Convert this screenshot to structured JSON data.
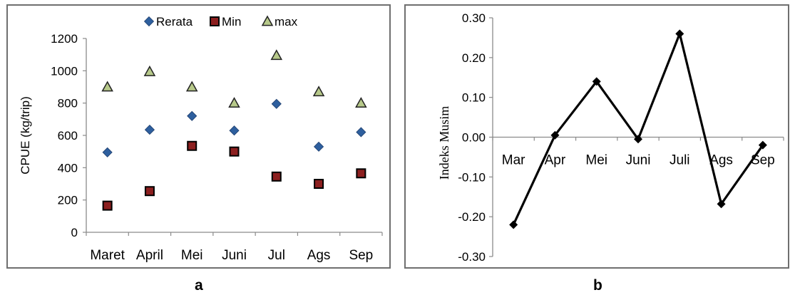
{
  "chart_data": [
    {
      "type": "scatter",
      "panel_label": "a",
      "ylabel": "CPUE (kg/trip)",
      "categories": [
        "Maret",
        "April",
        "Mei",
        "Juni",
        "Jul",
        "Ags",
        "Sep"
      ],
      "ylim": [
        0,
        1200
      ],
      "yticks": [
        "0",
        "200",
        "400",
        "600",
        "800",
        "1000",
        "1200"
      ],
      "legend_position": "top",
      "series": [
        {
          "name": "Rerata",
          "marker": "diamond",
          "color": "#2e5f9e",
          "values": [
            495,
            635,
            720,
            630,
            795,
            530,
            620
          ]
        },
        {
          "name": "Min",
          "marker": "square",
          "color": "#8c1f1f",
          "values": [
            165,
            255,
            535,
            500,
            345,
            300,
            365
          ]
        },
        {
          "name": "max",
          "marker": "triangle",
          "color": "#b7c98a",
          "values": [
            900,
            995,
            900,
            800,
            1095,
            870,
            800
          ]
        }
      ]
    },
    {
      "type": "line",
      "panel_label": "b",
      "ylabel": "Indeks Musim",
      "categories": [
        "Mar",
        "Apr",
        "Mei",
        "Juni",
        "Juli",
        "Ags",
        "Sep"
      ],
      "ylim": [
        -0.3,
        0.3
      ],
      "yticks": [
        "0.30",
        "0.20",
        "0.10",
        "0.00",
        "-0.10",
        "-0.20",
        "-0.30"
      ],
      "series": [
        {
          "values": [
            -0.22,
            0.005,
            0.14,
            -0.005,
            0.26,
            -0.168,
            -0.02
          ],
          "color": "#000000",
          "marker": "diamond"
        }
      ]
    }
  ]
}
